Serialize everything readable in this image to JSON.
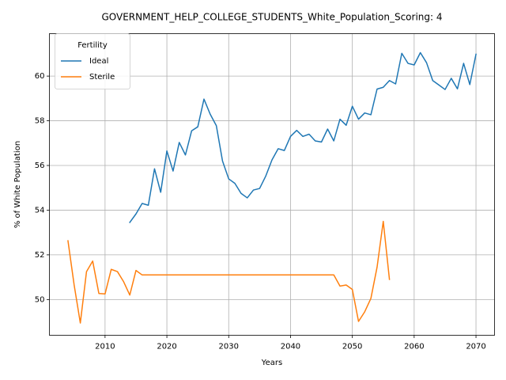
{
  "chart_data": {
    "type": "line",
    "title": "GOVERNMENT_HELP_COLLEGE_STUDENTS_White_Population_Scoring: 4",
    "xlabel": "Years",
    "ylabel": "% of White Population",
    "xlim": [
      2001,
      2073
    ],
    "ylim": [
      48.4,
      61.9
    ],
    "x_ticks": [
      2010,
      2020,
      2030,
      2040,
      2050,
      2060,
      2070
    ],
    "y_ticks": [
      50,
      52,
      54,
      56,
      58,
      60
    ],
    "grid": true,
    "legend": {
      "title": "Fertility",
      "location": "top-left"
    },
    "series": [
      {
        "name": "Ideal",
        "color": "#1f77b4",
        "x": [
          2014,
          2015,
          2016,
          2017,
          2018,
          2019,
          2020,
          2021,
          2022,
          2023,
          2024,
          2025,
          2026,
          2027,
          2028,
          2029,
          2030,
          2031,
          2032,
          2033,
          2034,
          2035,
          2036,
          2037,
          2038,
          2039,
          2040,
          2041,
          2042,
          2043,
          2044,
          2045,
          2046,
          2047,
          2048,
          2049,
          2050,
          2051,
          2052,
          2053,
          2054,
          2055,
          2056,
          2057,
          2058,
          2059,
          2060,
          2061,
          2062,
          2063,
          2064,
          2065,
          2066,
          2067,
          2068,
          2069,
          2070
        ],
        "values": [
          53.45,
          53.83,
          54.3,
          54.22,
          55.85,
          54.8,
          56.65,
          55.75,
          57.03,
          56.47,
          57.55,
          57.73,
          58.97,
          58.3,
          57.78,
          56.2,
          55.4,
          55.2,
          54.75,
          54.55,
          54.9,
          54.97,
          55.53,
          56.25,
          56.75,
          56.67,
          57.3,
          57.57,
          57.3,
          57.4,
          57.1,
          57.05,
          57.63,
          57.1,
          58.07,
          57.8,
          58.65,
          58.07,
          58.35,
          58.27,
          59.42,
          59.5,
          59.8,
          59.65,
          61.02,
          60.57,
          60.5,
          61.05,
          60.6,
          59.8,
          59.6,
          59.4,
          59.9,
          59.43,
          60.57,
          59.62,
          60.98
        ]
      },
      {
        "name": "Sterile",
        "color": "#ff7f0e",
        "x": [
          2004,
          2005,
          2006,
          2007,
          2008,
          2009,
          2010,
          2011,
          2012,
          2013,
          2014,
          2015,
          2016,
          2017,
          2018,
          2019,
          2020,
          2025,
          2030,
          2035,
          2040,
          2045,
          2047,
          2048,
          2049,
          2050,
          2051,
          2052,
          2053,
          2054,
          2055,
          2056
        ],
        "values": [
          52.63,
          50.65,
          48.95,
          51.25,
          51.72,
          50.27,
          50.25,
          51.35,
          51.25,
          50.8,
          50.2,
          51.3,
          51.1,
          51.1,
          51.1,
          51.1,
          51.1,
          51.1,
          51.1,
          51.1,
          51.1,
          51.1,
          51.1,
          50.6,
          50.65,
          50.45,
          49.02,
          49.45,
          50.05,
          51.45,
          53.5,
          50.9
        ]
      }
    ]
  }
}
